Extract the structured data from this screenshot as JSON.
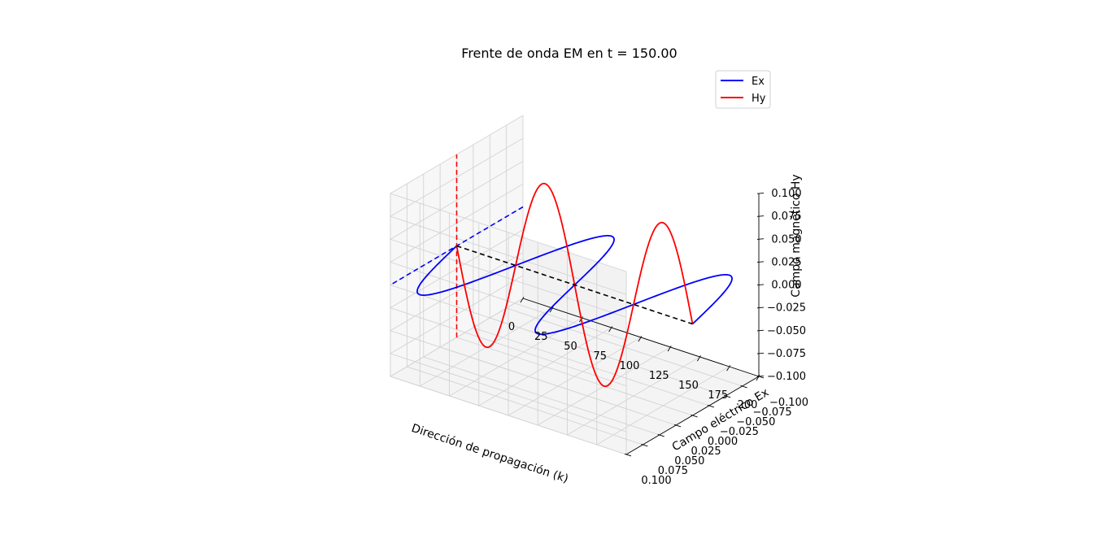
{
  "chart_data": {
    "type": "line3d",
    "title": "Frente de onda EM en t = 150.00",
    "xlabel": "Dirección de propagación (k)",
    "ylabel": "Campo eléctrico Ex",
    "zlabel": "Campo magnético Hy",
    "xlim": [
      0,
      200
    ],
    "ylim": [
      -0.1,
      0.1
    ],
    "zlim": [
      -0.1,
      0.1
    ],
    "xticks": [
      0,
      25,
      50,
      75,
      100,
      125,
      150,
      175,
      200
    ],
    "xtick_labels": [
      "0",
      "25",
      "50",
      "75",
      "100",
      "125",
      "150",
      "175",
      "200"
    ],
    "yticks": [
      -0.1,
      -0.075,
      -0.05,
      -0.025,
      0,
      0.025,
      0.05,
      0.075,
      0.1
    ],
    "ytick_labels": [
      "−0.100",
      "−0.075",
      "−0.050",
      "−0.025",
      "0.000",
      "0.025",
      "0.050",
      "0.075",
      "0.100"
    ],
    "zticks": [
      -0.1,
      -0.075,
      -0.05,
      -0.025,
      0,
      0.025,
      0.05,
      0.075,
      0.1
    ],
    "ztick_labels": [
      "−0.100",
      "−0.075",
      "−0.050",
      "−0.025",
      "0.000",
      "0.025",
      "0.050",
      "0.075",
      "0.100"
    ],
    "grid": true,
    "legend_position": "top-right",
    "series": [
      {
        "name": "Ex",
        "color": "#0000ff",
        "plane": "x-y",
        "amplitude": 0.1,
        "wavelength": 100,
        "phase_deg": 0,
        "x_range": [
          0,
          200
        ]
      },
      {
        "name": "Hy",
        "color": "#ff0000",
        "plane": "x-z",
        "amplitude": 0.1,
        "wavelength": 100,
        "phase_deg": 180,
        "x_range": [
          0,
          200
        ]
      }
    ],
    "reference_lines": [
      {
        "name": "Ex axis indicator",
        "color": "#0000ff",
        "style": "dashed",
        "axis": "y"
      },
      {
        "name": "Hy axis indicator",
        "color": "#ff0000",
        "style": "dashed",
        "axis": "z"
      },
      {
        "name": "propagation axis",
        "color": "#000000",
        "style": "dashed",
        "axis": "x"
      }
    ]
  }
}
